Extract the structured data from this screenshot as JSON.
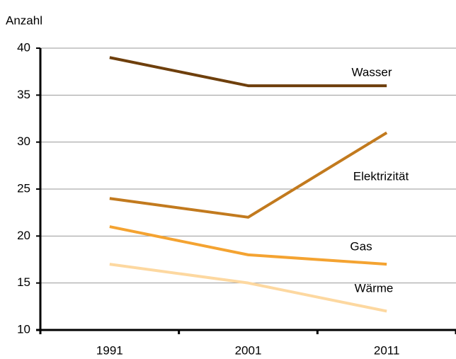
{
  "chart_data": {
    "type": "line",
    "y_label": "Anzahl",
    "categories": [
      "1991",
      "2001",
      "2011"
    ],
    "series": [
      {
        "name": "Wasser",
        "color": "#6e3f0c",
        "values": [
          39,
          36,
          36
        ]
      },
      {
        "name": "Elektrizität",
        "color": "#c27a1e",
        "values": [
          24,
          22,
          31
        ]
      },
      {
        "name": "Gas",
        "color": "#f4a331",
        "values": [
          21,
          18,
          17
        ]
      },
      {
        "name": "Wärme",
        "color": "#fdd8a0",
        "values": [
          17,
          15,
          12
        ]
      }
    ],
    "ylim": [
      10,
      40
    ],
    "yticks": [
      10,
      15,
      20,
      25,
      30,
      35,
      40
    ],
    "grid": true
  }
}
